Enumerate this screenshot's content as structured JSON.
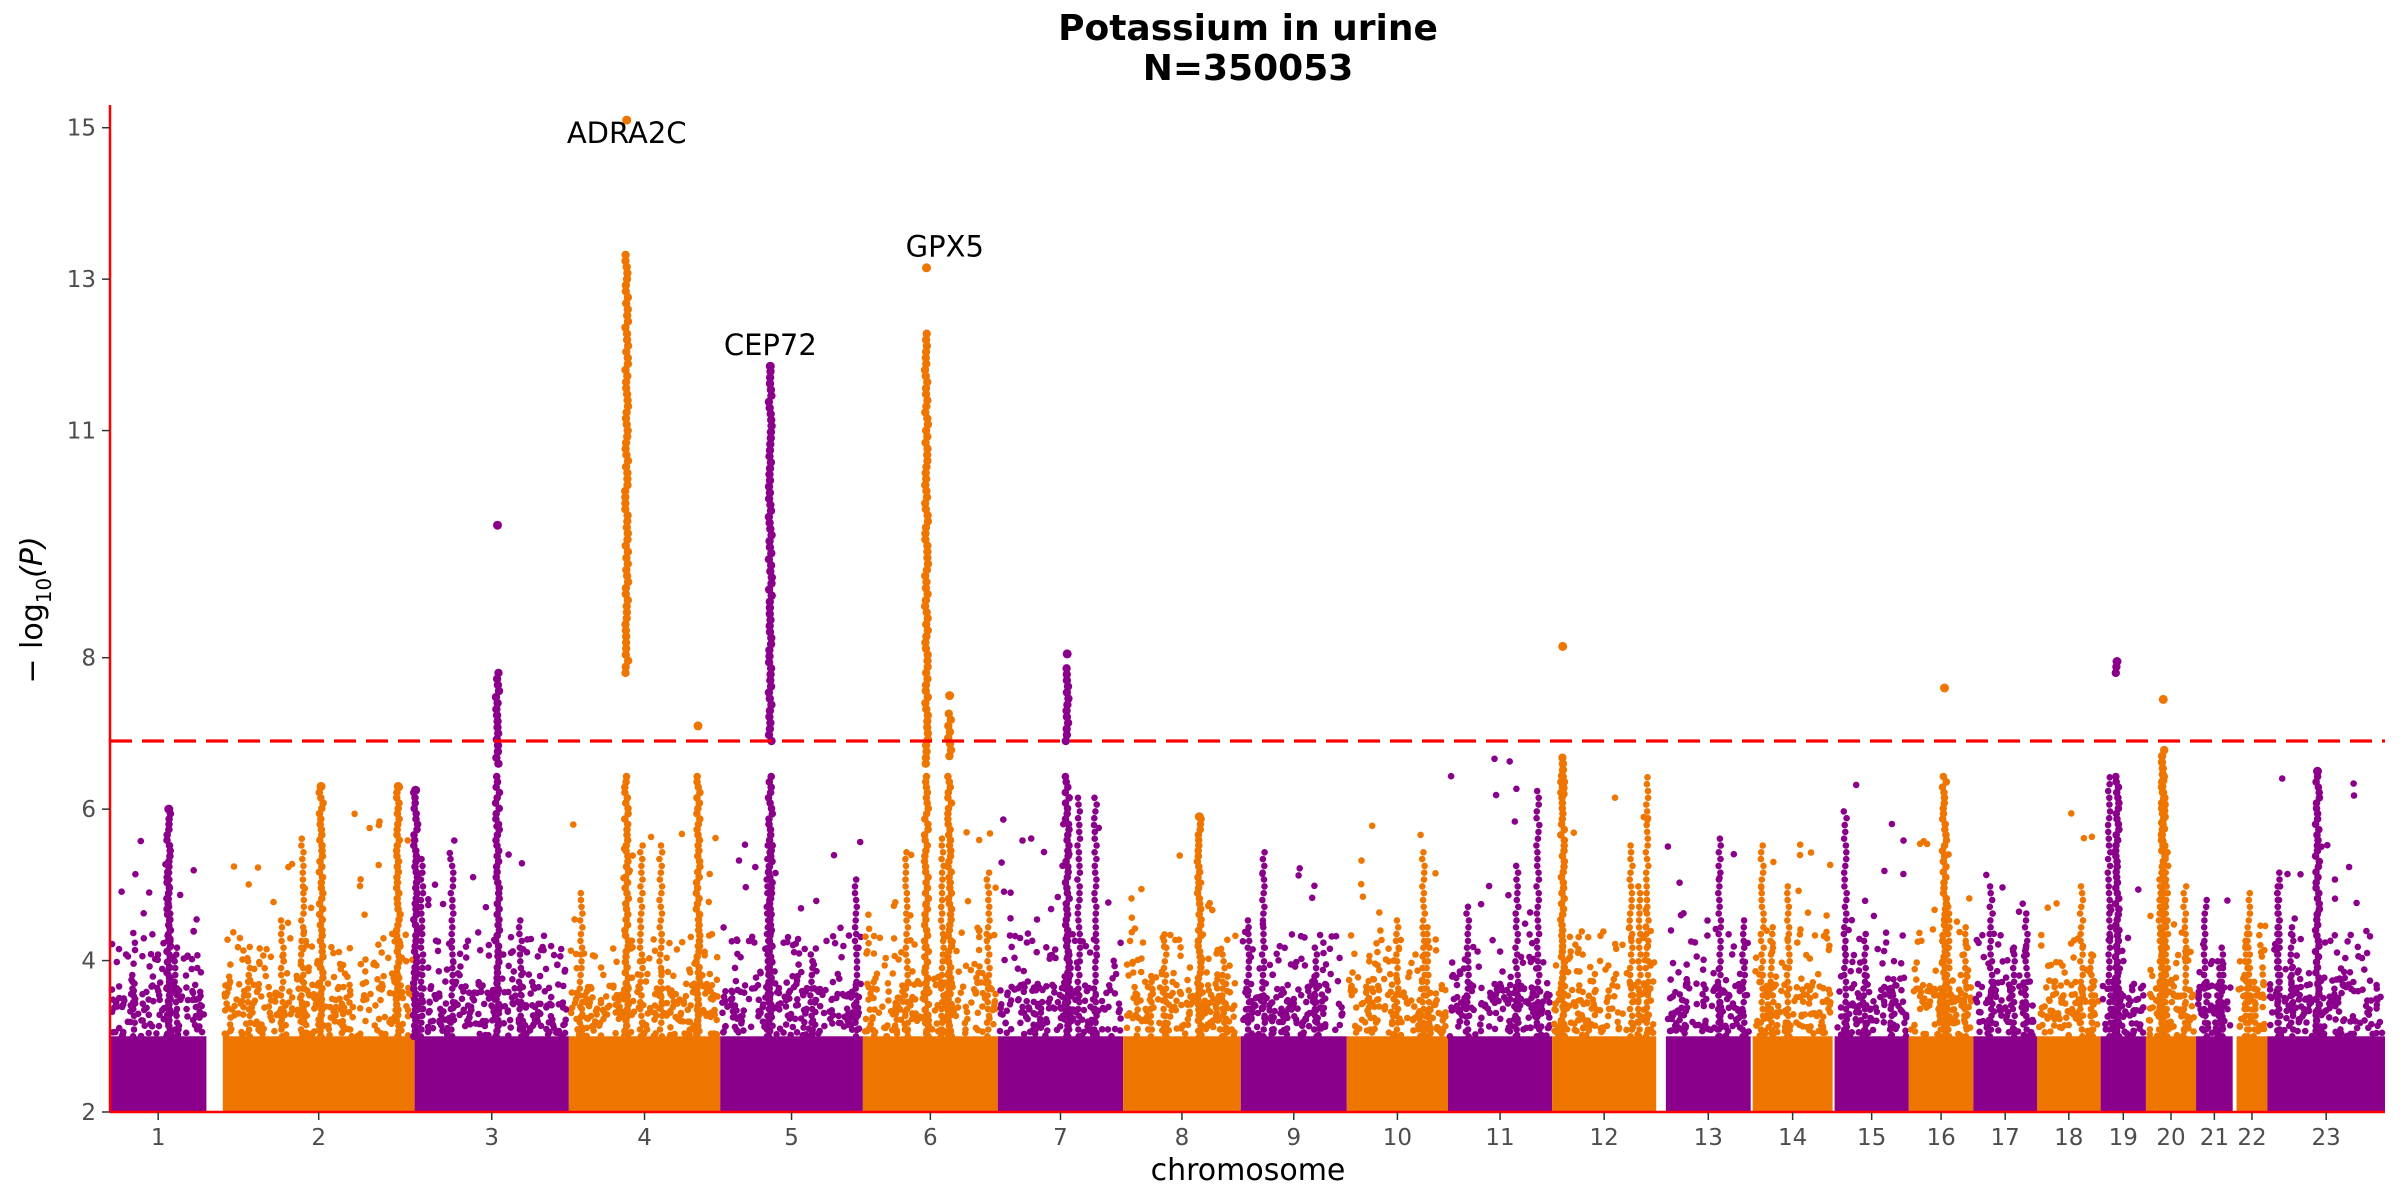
{
  "chart_data": {
    "type": "scatter",
    "title": "Potassium in urine",
    "subtitle": "N=350053",
    "xlabel": "chromosome",
    "ylabel_main": "− log",
    "ylabel_sub": "10",
    "ylabel_tail": "(P)",
    "ylim": [
      2,
      15.3
    ],
    "yticks": [
      "2",
      "4",
      "6",
      "8",
      "11",
      "13",
      "15"
    ],
    "threshold": 6.9,
    "colors": {
      "odd": "#8B008B",
      "even": "#EE7600",
      "threshold": "#FF0000",
      "axis": "#FF0000"
    },
    "chromosomes": [
      {
        "label": "1",
        "start": 0,
        "end": 1,
        "top": 5.6
      },
      {
        "label": "2",
        "start": 1.17,
        "end": 3.16,
        "top": 6.5
      },
      {
        "label": "3",
        "start": 3.16,
        "end": 4.76,
        "top": 5.9
      },
      {
        "label": "4",
        "start": 4.76,
        "end": 6.33,
        "top": 5.8
      },
      {
        "label": "5",
        "start": 6.33,
        "end": 7.81,
        "top": 5.8
      },
      {
        "label": "6",
        "start": 7.81,
        "end": 9.21,
        "top": 5.7
      },
      {
        "label": "7",
        "start": 9.21,
        "end": 10.51,
        "top": 6.3
      },
      {
        "label": "8",
        "start": 10.51,
        "end": 11.73,
        "top": 5.9
      },
      {
        "label": "9",
        "start": 11.73,
        "end": 12.83,
        "top": 5.7
      },
      {
        "label": "10",
        "start": 12.83,
        "end": 13.88,
        "top": 6.0
      },
      {
        "label": "11",
        "start": 13.88,
        "end": 14.96,
        "top": 6.7
      },
      {
        "label": "12",
        "start": 14.96,
        "end": 16.04,
        "top": 6.5
      },
      {
        "label": "13",
        "start": 16.14,
        "end": 17.02,
        "top": 5.8
      },
      {
        "label": "14",
        "start": 17.04,
        "end": 17.87,
        "top": 5.7
      },
      {
        "label": "15",
        "start": 17.89,
        "end": 18.66,
        "top": 6.6
      },
      {
        "label": "16",
        "start": 18.66,
        "end": 19.33,
        "top": 5.9
      },
      {
        "label": "17",
        "start": 19.33,
        "end": 19.99,
        "top": 5.3
      },
      {
        "label": "18",
        "start": 19.99,
        "end": 20.65,
        "top": 6.4
      },
      {
        "label": "19",
        "start": 20.65,
        "end": 21.12,
        "top": 6.8
      },
      {
        "label": "20",
        "start": 21.12,
        "end": 21.64,
        "top": 6.3
      },
      {
        "label": "21",
        "start": 21.64,
        "end": 22.02,
        "top": 4.9
      },
      {
        "label": "22",
        "start": 22.06,
        "end": 22.38,
        "top": 5.0
      },
      {
        "label": "23",
        "start": 22.38,
        "end": 23.6,
        "top": 6.5
      }
    ],
    "peaks": [
      {
        "x": 0.61,
        "y": 6.0
      },
      {
        "x": 2.19,
        "y": 6.3
      },
      {
        "x": 2.99,
        "y": 6.3
      },
      {
        "x": 3.17,
        "y": 6.25
      },
      {
        "x": 4.02,
        "y": 9.75,
        "cluster_from": 6.6,
        "cluster_to": 7.85
      },
      {
        "x": 5.36,
        "y": 15.1,
        "cluster_from": 7.8,
        "cluster_to": 13.4
      },
      {
        "x": 6.1,
        "y": 7.1
      },
      {
        "x": 6.85,
        "y": 11.85,
        "cluster_from": 6.9,
        "cluster_to": 11.8
      },
      {
        "x": 8.47,
        "y": 13.15,
        "cluster_from": 6.6,
        "cluster_to": 12.3
      },
      {
        "x": 8.71,
        "y": 7.5,
        "cluster_from": 6.7,
        "cluster_to": 7.3
      },
      {
        "x": 9.93,
        "y": 8.05,
        "cluster_from": 6.9,
        "cluster_to": 7.9
      },
      {
        "x": 11.3,
        "y": 5.9
      },
      {
        "x": 15.07,
        "y": 8.15,
        "cluster_from": 6.2,
        "cluster_to": 6.7
      },
      {
        "x": 19.03,
        "y": 7.6
      },
      {
        "x": 20.82,
        "y": 7.95,
        "cluster_from": 7.8,
        "cluster_to": 7.9
      },
      {
        "x": 21.3,
        "y": 7.45,
        "cluster_from": 5.5,
        "cluster_to": 6.8
      },
      {
        "x": 22.9,
        "y": 6.5
      }
    ],
    "labels": [
      {
        "text": "ADRA2C",
        "x": 5.36,
        "y": 14.8
      },
      {
        "text": "CEP72",
        "x": 6.85,
        "y": 12.0
      },
      {
        "text": "GPX5",
        "x": 8.66,
        "y": 13.3
      }
    ]
  }
}
